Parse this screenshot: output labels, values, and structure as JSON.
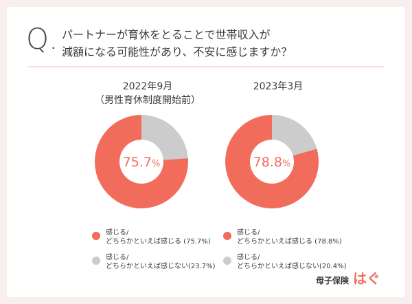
{
  "question": {
    "mark": "Q.",
    "text": "パートナーが育休をとることで世帯収入が\n減額になる可能性があり、不安に感じますか？"
  },
  "colors": {
    "yes": "#f26c5b",
    "no": "#cccccc",
    "accent_text": "#f26c5b"
  },
  "chart_data": [
    {
      "type": "pie",
      "title": "2022年9月",
      "subtitle": "（男性育休制度開始前）",
      "center_label": "75.7%",
      "center_value": "75.7",
      "center_unit": "%",
      "slices": [
        {
          "label": "感じる/\nどちらかといえば感じる (75.7%)",
          "value": 75.7,
          "color": "#f26c5b"
        },
        {
          "label": "感じる/\nどちらかといえば感じない(23.7%)",
          "value": 23.7,
          "color": "#cccccc"
        }
      ]
    },
    {
      "type": "pie",
      "title": "2023年3月",
      "center_label": "78.8%",
      "center_value": "78.8",
      "center_unit": "%",
      "slices": [
        {
          "label": "感じる/\nどちらかといえば感じる (78.8%)",
          "value": 78.8,
          "color": "#f26c5b"
        },
        {
          "label": "感じる/\nどちらかといえば感じない(20.4%)",
          "value": 20.4,
          "color": "#cccccc"
        }
      ]
    }
  ],
  "brand": {
    "name": "母子保険",
    "logo": "はぐ"
  }
}
